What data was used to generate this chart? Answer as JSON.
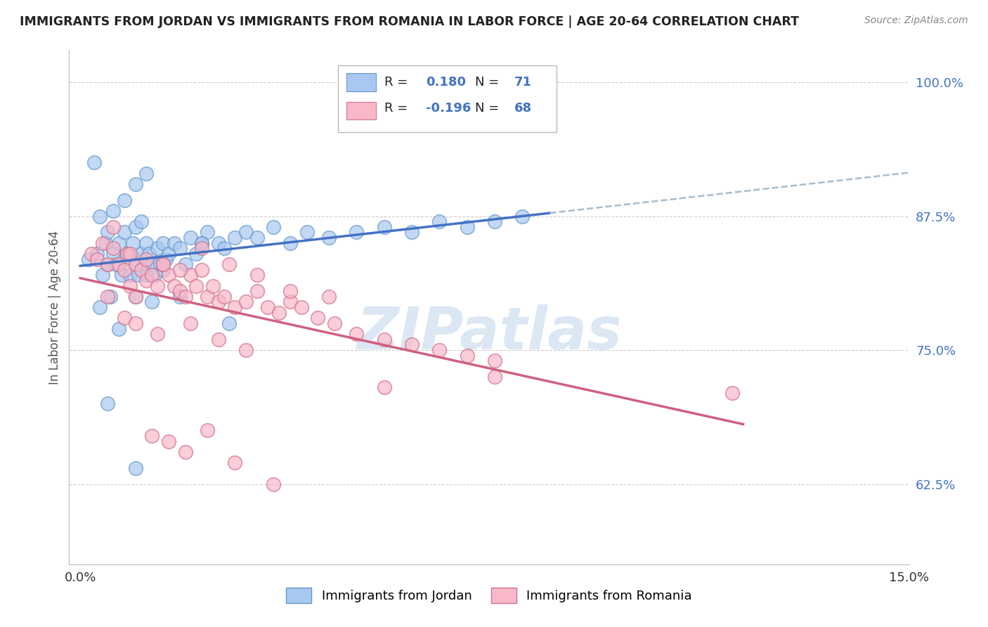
{
  "title": "IMMIGRANTS FROM JORDAN VS IMMIGRANTS FROM ROMANIA IN LABOR FORCE | AGE 20-64 CORRELATION CHART",
  "source": "Source: ZipAtlas.com",
  "ylabel": "In Labor Force | Age 20-64",
  "xlim": [
    0.0,
    15.0
  ],
  "ylim": [
    55.0,
    103.0
  ],
  "yticks": [
    62.5,
    75.0,
    87.5,
    100.0
  ],
  "jordan_color": "#a8c8f0",
  "jordan_edge": "#6699cc",
  "romania_color": "#f9b8c8",
  "romania_edge": "#d07090",
  "trend_jordan_color": "#4472c4",
  "trend_romania_color": "#d06080",
  "trend_ext_color": "#aabbcc",
  "R_jordan": "0.180",
  "N_jordan": "71",
  "R_romania": "-0.196",
  "N_romania": "68",
  "legend_label_jordan": "Immigrants from Jordan",
  "legend_label_romania": "Immigrants from Romania",
  "watermark": "ZIPatlas",
  "watermark_color": "#c5d8ee",
  "jordan_x": [
    0.15,
    0.3,
    0.35,
    0.4,
    0.45,
    0.5,
    0.5,
    0.55,
    0.6,
    0.65,
    0.7,
    0.75,
    0.8,
    0.8,
    0.85,
    0.9,
    0.95,
    1.0,
    1.0,
    1.0,
    1.05,
    1.1,
    1.1,
    1.15,
    1.2,
    1.2,
    1.25,
    1.3,
    1.35,
    1.4,
    1.45,
    1.5,
    1.55,
    1.6,
    1.7,
    1.8,
    1.9,
    2.0,
    2.1,
    2.2,
    2.3,
    2.5,
    2.6,
    2.8,
    3.0,
    3.2,
    3.5,
    3.8,
    4.1,
    4.5,
    5.0,
    5.5,
    6.0,
    6.5,
    7.0,
    7.5,
    8.0,
    0.25,
    0.6,
    0.8,
    1.0,
    1.2,
    1.5,
    1.8,
    2.2,
    2.7,
    0.35,
    0.7,
    1.3,
    0.5,
    1.0
  ],
  "jordan_y": [
    83.5,
    84.0,
    87.5,
    82.0,
    85.0,
    83.0,
    86.0,
    80.0,
    84.0,
    83.0,
    85.0,
    82.0,
    83.5,
    86.0,
    84.0,
    82.0,
    85.0,
    80.0,
    83.5,
    86.5,
    82.0,
    84.0,
    87.0,
    83.0,
    82.0,
    85.0,
    84.0,
    83.0,
    82.0,
    84.5,
    83.0,
    85.0,
    83.5,
    84.0,
    85.0,
    84.5,
    83.0,
    85.5,
    84.0,
    85.0,
    86.0,
    85.0,
    84.5,
    85.5,
    86.0,
    85.5,
    86.5,
    85.0,
    86.0,
    85.5,
    86.0,
    86.5,
    86.0,
    87.0,
    86.5,
    87.0,
    87.5,
    92.5,
    88.0,
    89.0,
    90.5,
    91.5,
    82.5,
    80.0,
    85.0,
    77.5,
    79.0,
    77.0,
    79.5,
    70.0,
    64.0
  ],
  "romania_x": [
    0.2,
    0.3,
    0.4,
    0.5,
    0.6,
    0.7,
    0.8,
    0.85,
    0.9,
    1.0,
    1.0,
    1.1,
    1.2,
    1.3,
    1.4,
    1.5,
    1.6,
    1.7,
    1.8,
    1.9,
    2.0,
    2.1,
    2.2,
    2.3,
    2.4,
    2.5,
    2.6,
    2.8,
    3.0,
    3.2,
    3.4,
    3.6,
    3.8,
    4.0,
    4.3,
    4.6,
    5.0,
    5.5,
    6.0,
    6.5,
    7.0,
    7.5,
    0.6,
    0.9,
    1.2,
    1.5,
    1.8,
    2.2,
    2.7,
    3.2,
    3.8,
    4.5,
    1.3,
    1.6,
    1.9,
    2.3,
    2.8,
    3.5,
    11.8,
    0.5,
    0.8,
    1.0,
    1.4,
    2.0,
    2.5,
    3.0,
    5.5,
    7.5
  ],
  "romania_y": [
    84.0,
    83.5,
    85.0,
    83.0,
    84.5,
    83.0,
    82.5,
    84.0,
    81.0,
    83.0,
    80.0,
    82.5,
    81.5,
    82.0,
    81.0,
    83.0,
    82.0,
    81.0,
    80.5,
    80.0,
    82.0,
    81.0,
    82.5,
    80.0,
    81.0,
    79.5,
    80.0,
    79.0,
    79.5,
    80.5,
    79.0,
    78.5,
    79.5,
    79.0,
    78.0,
    77.5,
    76.5,
    76.0,
    75.5,
    75.0,
    74.5,
    74.0,
    86.5,
    84.0,
    83.5,
    83.0,
    82.5,
    84.5,
    83.0,
    82.0,
    80.5,
    80.0,
    67.0,
    66.5,
    65.5,
    67.5,
    64.5,
    62.5,
    71.0,
    80.0,
    78.0,
    77.5,
    76.5,
    77.5,
    76.0,
    75.0,
    71.5,
    72.5
  ]
}
